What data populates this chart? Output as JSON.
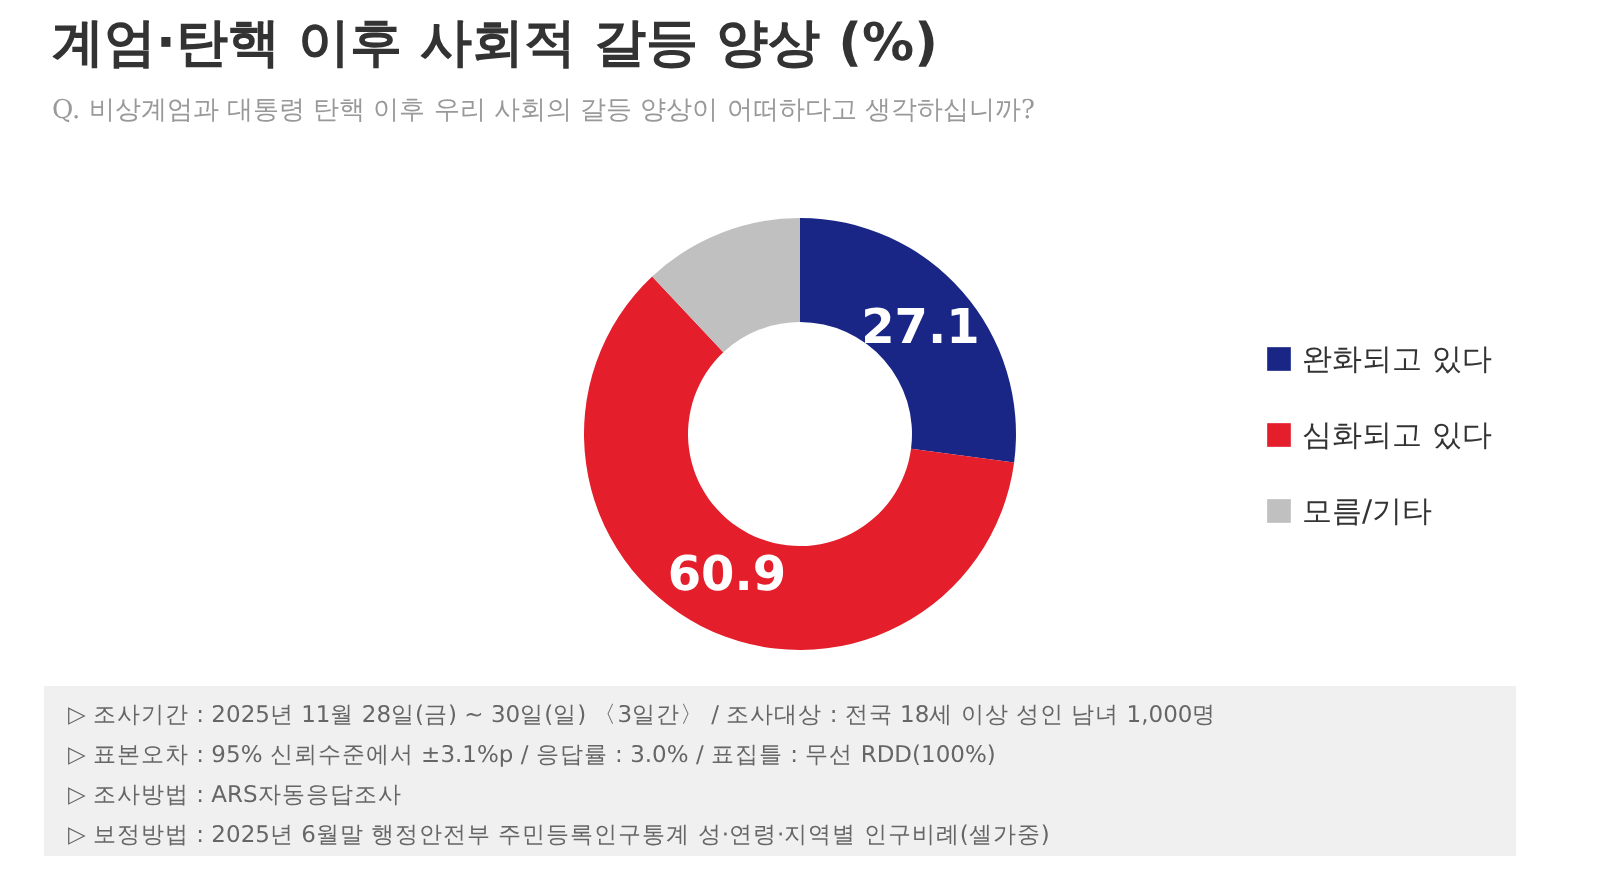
{
  "chart_data": {
    "type": "donut",
    "title": "계엄·탄핵 이후 사회적 갈등 양상 (%)",
    "subtitle": "Q. 비상계엄과 대통령 탄핵 이후 우리 사회의 갈등 양상이 어떠하다고 생각하십니까?",
    "categories": [
      "완화되고 있다",
      "심화되고 있다",
      "모름/기타"
    ],
    "values": [
      27.1,
      60.9,
      12.0
    ],
    "colors": [
      "#1a2686",
      "#e41e2b",
      "#c0c0c0"
    ],
    "value_labels": [
      "27.1",
      "60.9",
      null
    ],
    "legend": "right",
    "annotations": [
      "▷ 조사기간 : 2025년 11월 28일(금) ~ 30일(일) 〈3일간〉 / 조사대상 : 전국 18세 이상 성인 남녀 1,000명",
      "▷ 표본오차 : 95% 신뢰수준에서 ±3.1%p / 응답률 : 3.0% / 표집틀 : 무선 RDD(100%)",
      "▷ 조사방법 : ARS자동응답조사",
      "▷ 보정방법 : 2025년 6월말 행정안전부 주민등록인구통계 성·연령·지역별 인구비례(셀가중)"
    ]
  }
}
